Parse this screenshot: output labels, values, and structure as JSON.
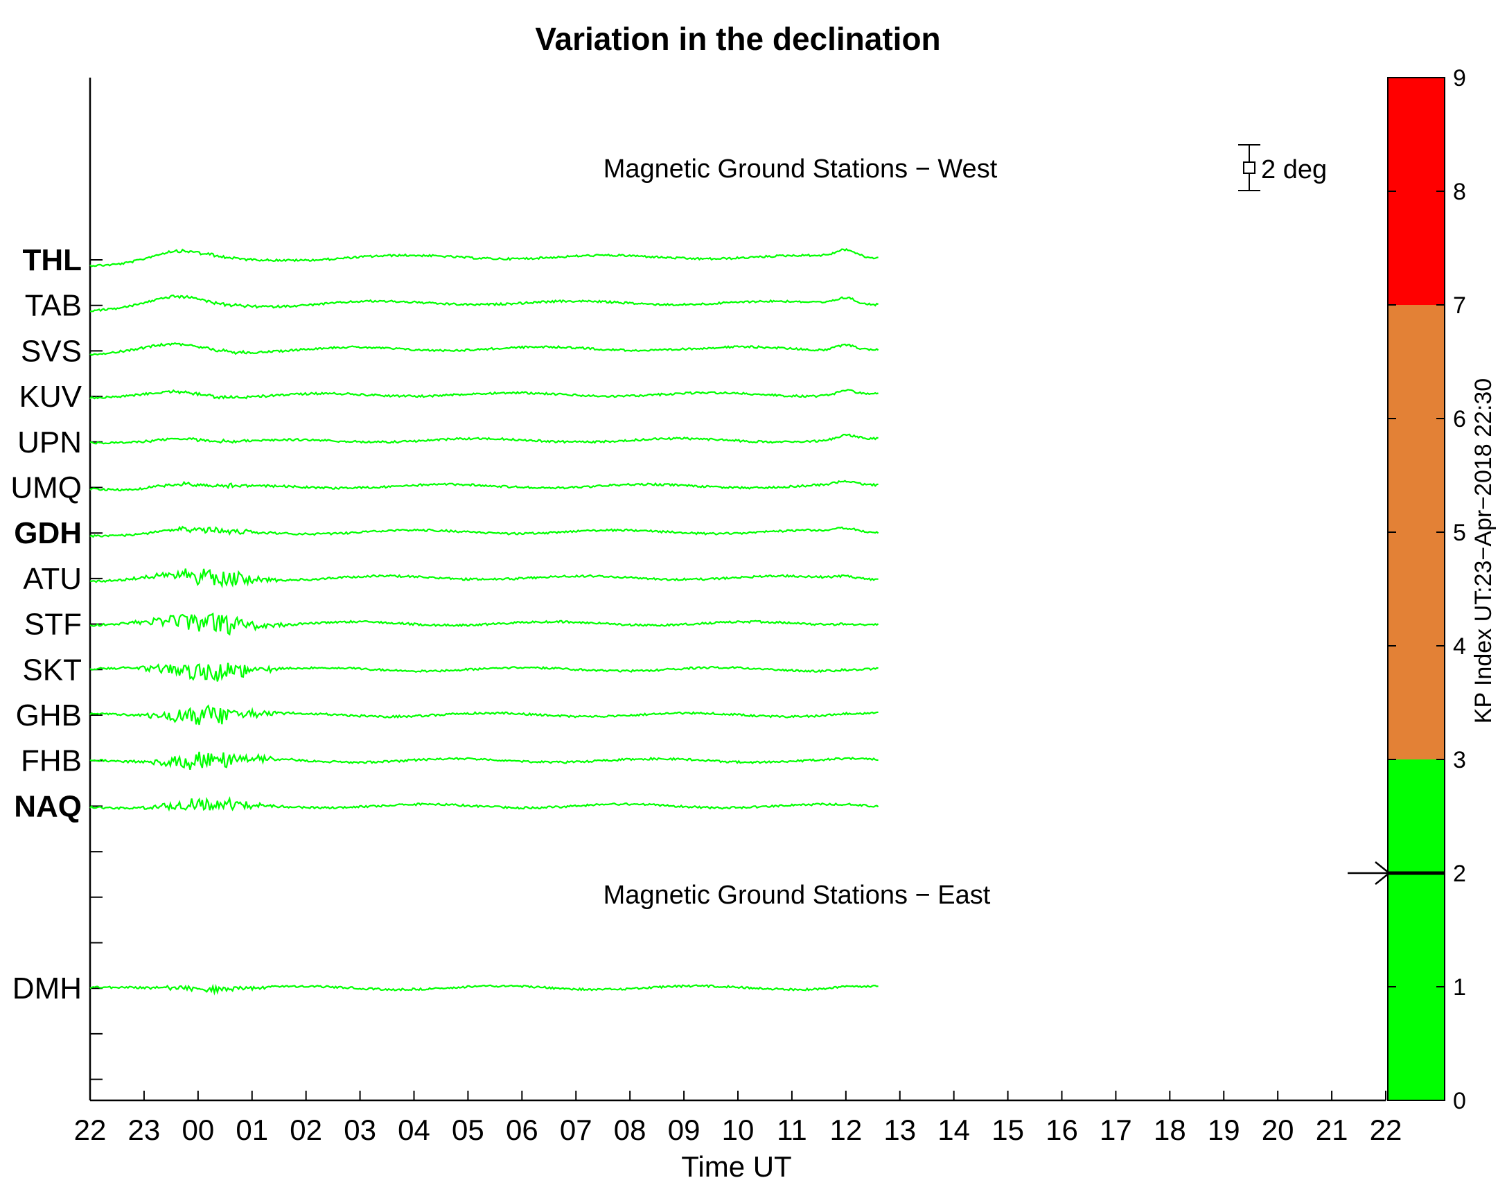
{
  "chart_data": {
    "type": "line",
    "title": "Variation in the declination",
    "xlabel": "Time UT",
    "ylabel": "",
    "x_tick_labels": [
      "22",
      "23",
      "00",
      "01",
      "02",
      "03",
      "04",
      "05",
      "06",
      "07",
      "08",
      "09",
      "10",
      "11",
      "12",
      "13",
      "14",
      "15",
      "16",
      "17",
      "18",
      "19",
      "20",
      "21",
      "22"
    ],
    "x_range_hours": [
      0,
      24
    ],
    "data_end_hour": 14.6,
    "scale_bar": {
      "label": "2 deg",
      "degrees": 2
    },
    "annotations": {
      "west": "Magnetic Ground Stations − West",
      "east": "Magnetic Ground Stations − East"
    },
    "y_tick_count": 20,
    "stations": [
      {
        "name": "THL",
        "bold": true,
        "slot": 1,
        "activity": 0.1,
        "trend": 1.0
      },
      {
        "name": "TAB",
        "bold": false,
        "slot": 2,
        "activity": 0.1,
        "trend": 0.9
      },
      {
        "name": "SVS",
        "bold": false,
        "slot": 3,
        "activity": 0.1,
        "trend": 0.8
      },
      {
        "name": "KUV",
        "bold": false,
        "slot": 4,
        "activity": 0.1,
        "trend": 0.7
      },
      {
        "name": "UPN",
        "bold": false,
        "slot": 5,
        "activity": 0.1,
        "trend": 0.6
      },
      {
        "name": "UMQ",
        "bold": false,
        "slot": 6,
        "activity": 0.15,
        "trend": 0.5
      },
      {
        "name": "GDH",
        "bold": true,
        "slot": 7,
        "activity": 0.25,
        "trend": 0.4
      },
      {
        "name": "ATU",
        "bold": false,
        "slot": 8,
        "activity": 0.75,
        "trend": 0.3
      },
      {
        "name": "STF",
        "bold": false,
        "slot": 9,
        "activity": 0.9,
        "trend": 0.2
      },
      {
        "name": "SKT",
        "bold": false,
        "slot": 10,
        "activity": 0.85,
        "trend": 0.1
      },
      {
        "name": "GHB",
        "bold": false,
        "slot": 11,
        "activity": 0.85,
        "trend": 0.1
      },
      {
        "name": "FHB",
        "bold": false,
        "slot": 12,
        "activity": 0.8,
        "trend": 0.05
      },
      {
        "name": "NAQ",
        "bold": true,
        "slot": 13,
        "activity": 0.55,
        "trend": 0.05
      },
      {
        "name": "DMH",
        "bold": false,
        "slot": 17,
        "activity": 0.2,
        "trend": 0.2
      }
    ],
    "trace_color": "#00ff00",
    "kp_index": {
      "label": "KP Index UT:23−Apr−2018 22:30",
      "range": [
        0,
        9
      ],
      "ticks": [
        "0",
        "1",
        "2",
        "3",
        "4",
        "5",
        "6",
        "7",
        "8",
        "9"
      ],
      "current": 2,
      "bands": [
        {
          "from": 0,
          "to": 3,
          "color": "#00ff00"
        },
        {
          "from": 3,
          "to": 7,
          "color": "#e38136"
        },
        {
          "from": 7,
          "to": 9,
          "color": "#ff0000"
        }
      ]
    }
  }
}
